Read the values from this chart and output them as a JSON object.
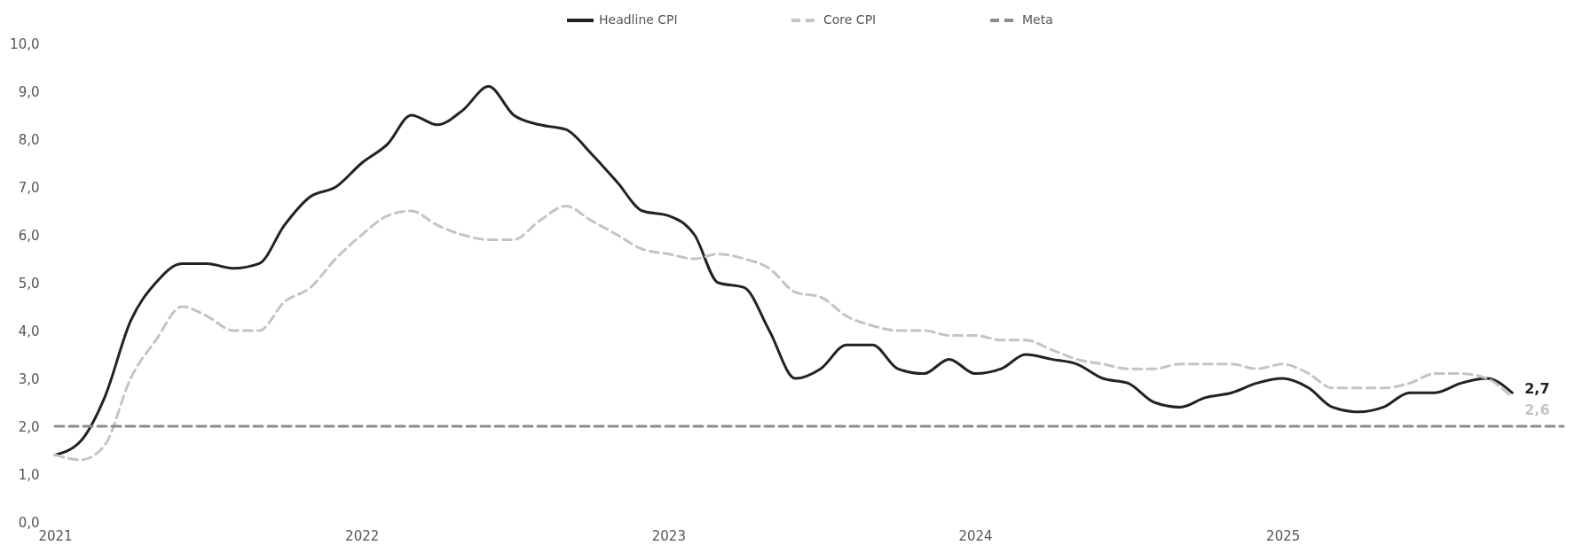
{
  "chart_data": {
    "type": "line",
    "x": [
      "2021-01",
      "2021-02",
      "2021-03",
      "2021-04",
      "2021-05",
      "2021-06",
      "2021-07",
      "2021-08",
      "2021-09",
      "2021-10",
      "2021-11",
      "2021-12",
      "2022-01",
      "2022-02",
      "2022-03",
      "2022-04",
      "2022-05",
      "2022-06",
      "2022-07",
      "2022-08",
      "2022-09",
      "2022-10",
      "2022-11",
      "2022-12",
      "2023-01",
      "2023-02",
      "2023-03",
      "2023-04",
      "2023-05",
      "2023-06",
      "2023-07",
      "2023-08",
      "2023-09",
      "2023-10",
      "2023-11",
      "2023-12",
      "2024-01",
      "2024-02",
      "2024-03",
      "2024-04",
      "2024-05",
      "2024-06",
      "2024-07",
      "2024-08",
      "2024-09",
      "2024-10",
      "2024-11",
      "2024-12",
      "2025-01",
      "2025-02",
      "2025-03",
      "2025-04",
      "2025-05",
      "2025-06",
      "2025-07",
      "2025-08",
      "2025-09",
      "2025-10"
    ],
    "series": [
      {
        "name": "Headline CPI",
        "color": "#222222",
        "line_style": "solid",
        "values": [
          1.4,
          1.7,
          2.6,
          4.2,
          5.0,
          5.4,
          5.4,
          5.3,
          5.4,
          6.2,
          6.8,
          7.0,
          7.5,
          7.9,
          8.5,
          8.3,
          8.6,
          9.1,
          8.5,
          8.3,
          8.2,
          7.7,
          7.1,
          6.5,
          6.4,
          6.0,
          5.0,
          4.9,
          4.0,
          3.0,
          3.2,
          3.7,
          3.7,
          3.2,
          3.1,
          3.4,
          3.1,
          3.2,
          3.5,
          3.4,
          3.3,
          3.0,
          2.9,
          2.5,
          2.4,
          2.6,
          2.7,
          2.9,
          3.0,
          2.8,
          2.4,
          2.3,
          2.4,
          2.7,
          2.7,
          2.9,
          3.0,
          2.7
        ],
        "value_labels": [
          null,
          null,
          null,
          null,
          null,
          null,
          null,
          null,
          null,
          null,
          null,
          null,
          null,
          null,
          null,
          null,
          null,
          null,
          null,
          null,
          null,
          null,
          null,
          null,
          null,
          null,
          null,
          null,
          null,
          null,
          null,
          null,
          null,
          null,
          null,
          null,
          null,
          null,
          null,
          null,
          null,
          null,
          null,
          null,
          null,
          null,
          null,
          null,
          null,
          null,
          null,
          null,
          null,
          null,
          null,
          null,
          null,
          "2,7"
        ]
      },
      {
        "name": "Core CPI",
        "color": "#c4c4c4",
        "line_style": "dashed",
        "values": [
          1.4,
          1.3,
          1.6,
          3.0,
          3.8,
          4.5,
          4.3,
          4.0,
          4.0,
          4.6,
          4.9,
          5.5,
          6.0,
          6.4,
          6.5,
          6.2,
          6.0,
          5.9,
          5.9,
          6.3,
          6.6,
          6.3,
          6.0,
          5.7,
          5.6,
          5.5,
          5.6,
          5.5,
          5.3,
          4.8,
          4.7,
          4.3,
          4.1,
          4.0,
          4.0,
          3.9,
          3.9,
          3.8,
          3.8,
          3.6,
          3.4,
          3.3,
          3.2,
          3.2,
          3.3,
          3.3,
          3.3,
          3.2,
          3.3,
          3.1,
          2.8,
          2.8,
          2.8,
          2.9,
          3.1,
          3.1,
          3.0,
          2.6
        ],
        "value_labels": [
          null,
          null,
          null,
          null,
          null,
          null,
          null,
          null,
          null,
          null,
          null,
          null,
          null,
          null,
          null,
          null,
          null,
          null,
          null,
          null,
          null,
          null,
          null,
          null,
          null,
          null,
          null,
          null,
          null,
          null,
          null,
          null,
          null,
          null,
          null,
          null,
          null,
          null,
          null,
          null,
          null,
          null,
          null,
          null,
          null,
          null,
          null,
          null,
          null,
          null,
          null,
          null,
          null,
          null,
          null,
          null,
          null,
          "2,6"
        ]
      },
      {
        "name": "Meta",
        "color": "#8c8c8c",
        "line_style": "dashed",
        "x": [
          "2021-01",
          "2025-12"
        ],
        "values": [
          2.0,
          2.0
        ]
      }
    ],
    "xlim": [
      "2021-01",
      "2025-12"
    ],
    "xticks": [
      "2021",
      "2022",
      "2023",
      "2024",
      "2025"
    ],
    "ylim": [
      0,
      10
    ],
    "yticks": [
      {
        "value": 0,
        "label": "0,0"
      },
      {
        "value": 1,
        "label": "1,0"
      },
      {
        "value": 2,
        "label": "2,0"
      },
      {
        "value": 3,
        "label": "3,0"
      },
      {
        "value": 4,
        "label": "4,0"
      },
      {
        "value": 5,
        "label": "5,0"
      },
      {
        "value": 6,
        "label": "6,0"
      },
      {
        "value": 7,
        "label": "7,0"
      },
      {
        "value": 8,
        "label": "8,0"
      },
      {
        "value": 9,
        "label": "9,0"
      },
      {
        "value": 10,
        "label": "10,0"
      }
    ],
    "legend": "top",
    "grid": false
  }
}
